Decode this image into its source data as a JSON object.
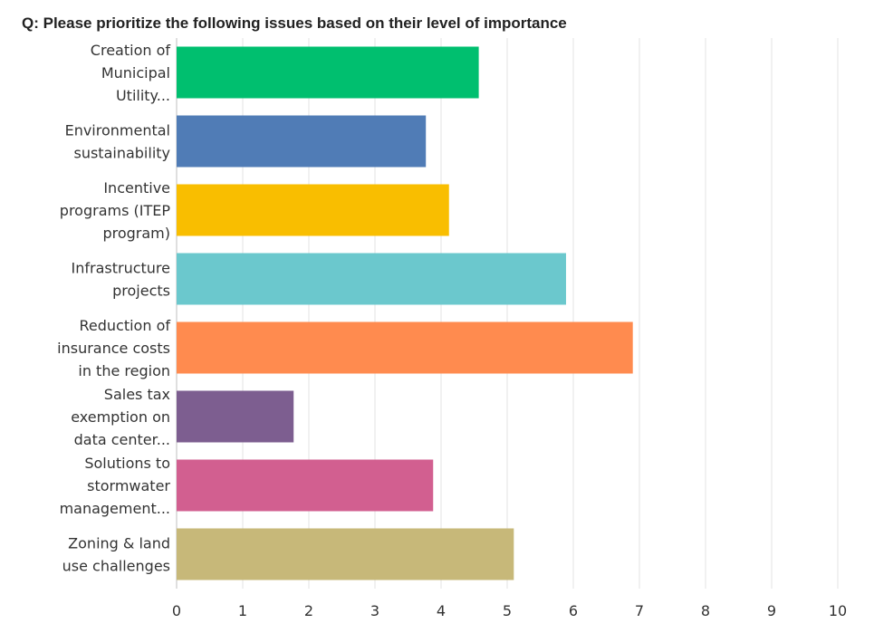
{
  "chart_data": {
    "type": "bar",
    "orientation": "horizontal",
    "title": "Q: Please prioritize the following issues based on their level of importance",
    "categories": [
      [
        "Creation of",
        "Municipal",
        "Utility..."
      ],
      [
        "Environmental",
        "sustainability"
      ],
      [
        "Incentive",
        "programs (ITEP",
        "program)"
      ],
      [
        "Infrastructure",
        "projects"
      ],
      [
        "Reduction of",
        "insurance costs",
        "in the region"
      ],
      [
        "Sales tax",
        "exemption on",
        "data center..."
      ],
      [
        "Solutions to",
        "stormwater",
        "management..."
      ],
      [
        "Zoning & land",
        "use challenges"
      ]
    ],
    "values": [
      4.57,
      3.77,
      4.12,
      5.89,
      6.9,
      1.77,
      3.88,
      5.1
    ],
    "colors": [
      "#00BF6F",
      "#507CB6",
      "#F9BE00",
      "#6BC8CD",
      "#FF8B4F",
      "#7D5E90",
      "#D25F90",
      "#C7B879"
    ],
    "xlim": [
      0,
      10
    ],
    "xticks": [
      "0",
      "1",
      "2",
      "3",
      "4",
      "5",
      "6",
      "7",
      "8",
      "9",
      "10"
    ],
    "grid": true,
    "xlabel": "",
    "ylabel": ""
  }
}
